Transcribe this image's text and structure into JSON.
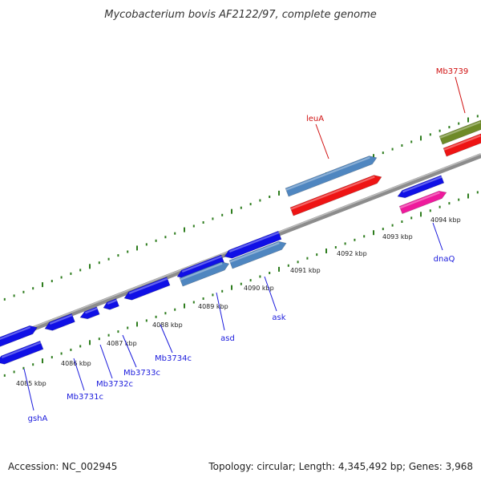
{
  "title": "Mycobacterium bovis AF2122/97, complete genome",
  "footer": {
    "accession": "Accession: NC_002945",
    "summary": "Topology: circular; Length: 4,345,492 bp; Genes: 3,968"
  },
  "colors": {
    "backbone": "#8c8c8c",
    "tick": "#2e7d1e",
    "label_blue": "#1a1adc",
    "label_red": "#d01010",
    "gene_blue": "#1010e6",
    "gene_steel": "#4f86c0",
    "gene_red": "#ee1414",
    "gene_pink": "#ee1a9c",
    "gene_olive": "#6e8a28"
  },
  "scale": {
    "labels": [
      "4085 kbp",
      "4086 kbp",
      "4087 kbp",
      "4088 kbp",
      "4089 kbp",
      "4090 kbp",
      "4091 kbp",
      "4092 kbp",
      "4093 kbp",
      "4094 kbp"
    ]
  },
  "genes": [
    {
      "name": "gshA",
      "color": "gene_blue"
    },
    {
      "name": "Mb3731c",
      "color": "gene_blue"
    },
    {
      "name": "Mb3732c",
      "color": "gene_blue"
    },
    {
      "name": "Mb3733c",
      "color": "gene_blue"
    },
    {
      "name": "Mb3734c",
      "color": "gene_blue"
    },
    {
      "name": "asd",
      "color": "gene_steel"
    },
    {
      "name": "ask",
      "color": "gene_steel"
    },
    {
      "name": "leuA",
      "color": "gene_red"
    },
    {
      "name": "dnaQ",
      "color": "gene_pink"
    },
    {
      "name": "Mb3739",
      "color": "gene_olive"
    }
  ]
}
